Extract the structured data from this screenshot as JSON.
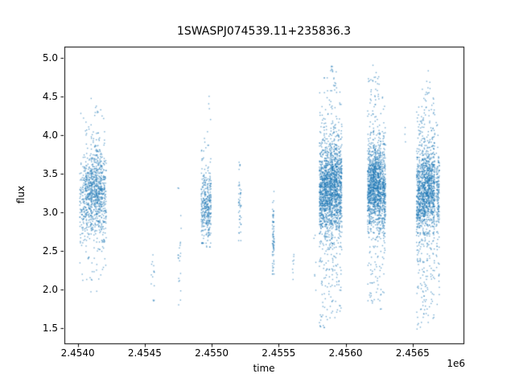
{
  "figure": {
    "background": "#ffffff"
  },
  "chart_data": {
    "type": "scatter",
    "title": "1SWASPJ074539.11+235836.3",
    "xlabel": "time",
    "ylabel": "flux",
    "x_offset_text": "1e6",
    "marker_color": "#1f77b4",
    "axis_color": "#000000",
    "grid": false,
    "legend": null,
    "xlim": [
      2453900,
      2456880
    ],
    "ylim": [
      1.3,
      5.15
    ],
    "xticks": [
      {
        "value": 2454000,
        "label": "2.4540"
      },
      {
        "value": 2454500,
        "label": "2.4545"
      },
      {
        "value": 2455000,
        "label": "2.4550"
      },
      {
        "value": 2455500,
        "label": "2.4555"
      },
      {
        "value": 2456000,
        "label": "2.4560"
      },
      {
        "value": 2456500,
        "label": "2.4565"
      }
    ],
    "yticks": [
      {
        "value": 1.5,
        "label": "1.5"
      },
      {
        "value": 2.0,
        "label": "2.0"
      },
      {
        "value": 2.5,
        "label": "2.5"
      },
      {
        "value": 3.0,
        "label": "3.0"
      },
      {
        "value": 3.5,
        "label": "3.5"
      },
      {
        "value": 4.0,
        "label": "4.0"
      },
      {
        "value": 4.5,
        "label": "4.5"
      },
      {
        "value": 5.0,
        "label": "5.0"
      }
    ],
    "clusters": [
      {
        "x": 2454040,
        "x_spread": 25,
        "n": 150,
        "flux_mean": 3.2,
        "flux_std": 0.3,
        "flux_min": 2.0,
        "flux_max": 4.3,
        "outlier_frac": 0.1
      },
      {
        "x": 2454080,
        "x_spread": 22,
        "n": 210,
        "flux_mean": 3.25,
        "flux_std": 0.27,
        "flux_min": 2.05,
        "flux_max": 4.35,
        "outlier_frac": 0.1
      },
      {
        "x": 2454120,
        "x_spread": 22,
        "n": 260,
        "flux_mean": 3.3,
        "flux_std": 0.26,
        "flux_min": 1.9,
        "flux_max": 4.5,
        "outlier_frac": 0.11
      },
      {
        "x": 2454158,
        "x_spread": 22,
        "n": 270,
        "flux_mean": 3.3,
        "flux_std": 0.28,
        "flux_min": 2.0,
        "flux_max": 4.55,
        "outlier_frac": 0.11
      },
      {
        "x": 2454195,
        "x_spread": 18,
        "n": 150,
        "flux_mean": 3.2,
        "flux_std": 0.33,
        "flux_min": 2.1,
        "flux_max": 4.25,
        "outlier_frac": 0.1
      },
      {
        "x": 2454560,
        "x_spread": 12,
        "n": 14,
        "flux_mean": 2.2,
        "flux_std": 0.18,
        "flux_min": 1.85,
        "flux_max": 2.55,
        "outlier_frac": 0.3
      },
      {
        "x": 2454760,
        "x_spread": 12,
        "n": 22,
        "flux_mean": 2.6,
        "flux_std": 0.35,
        "flux_min": 1.8,
        "flux_max": 3.35,
        "outlier_frac": 0.3
      },
      {
        "x": 2454940,
        "x_spread": 18,
        "n": 170,
        "flux_mean": 3.1,
        "flux_std": 0.22,
        "flux_min": 2.6,
        "flux_max": 4.0,
        "outlier_frac": 0.1
      },
      {
        "x": 2454978,
        "x_spread": 18,
        "n": 190,
        "flux_mean": 3.05,
        "flux_std": 0.24,
        "flux_min": 2.55,
        "flux_max": 4.55,
        "outlier_frac": 0.09
      },
      {
        "x": 2455210,
        "x_spread": 10,
        "n": 45,
        "flux_mean": 3.1,
        "flux_std": 0.28,
        "flux_min": 2.6,
        "flux_max": 3.65,
        "outlier_frac": 0.2
      },
      {
        "x": 2455460,
        "x_spread": 7,
        "n": 75,
        "flux_mean": 2.7,
        "flux_std": 0.24,
        "flux_min": 2.2,
        "flux_max": 3.5,
        "outlier_frac": 0.18
      },
      {
        "x": 2455610,
        "x_spread": 7,
        "n": 8,
        "flux_mean": 2.45,
        "flux_std": 0.12,
        "flux_min": 2.05,
        "flux_max": 2.65,
        "outlier_frac": 0.2
      },
      {
        "x": 2455770,
        "x_spread": 8,
        "n": 6,
        "flux_mean": 2.15,
        "flux_std": 0.25,
        "flux_min": 1.85,
        "flux_max": 2.9,
        "outlier_frac": 0.3
      },
      {
        "x": 2455820,
        "x_spread": 16,
        "n": 360,
        "flux_mean": 3.25,
        "flux_std": 0.3,
        "flux_min": 1.45,
        "flux_max": 4.6,
        "outlier_frac": 0.2
      },
      {
        "x": 2455855,
        "x_spread": 16,
        "n": 430,
        "flux_mean": 3.3,
        "flux_std": 0.28,
        "flux_min": 1.5,
        "flux_max": 4.75,
        "outlier_frac": 0.18
      },
      {
        "x": 2455890,
        "x_spread": 16,
        "n": 450,
        "flux_mean": 3.3,
        "flux_std": 0.3,
        "flux_min": 1.5,
        "flux_max": 4.9,
        "outlier_frac": 0.18
      },
      {
        "x": 2455925,
        "x_spread": 16,
        "n": 420,
        "flux_mean": 3.35,
        "flux_std": 0.28,
        "flux_min": 1.6,
        "flux_max": 4.85,
        "outlier_frac": 0.16
      },
      {
        "x": 2455958,
        "x_spread": 14,
        "n": 300,
        "flux_mean": 3.3,
        "flux_std": 0.3,
        "flux_min": 1.7,
        "flux_max": 4.6,
        "outlier_frac": 0.15
      },
      {
        "x": 2456180,
        "x_spread": 16,
        "n": 390,
        "flux_mean": 3.35,
        "flux_std": 0.27,
        "flux_min": 1.7,
        "flux_max": 4.8,
        "outlier_frac": 0.16
      },
      {
        "x": 2456215,
        "x_spread": 16,
        "n": 450,
        "flux_mean": 3.4,
        "flux_std": 0.25,
        "flux_min": 1.8,
        "flux_max": 4.95,
        "outlier_frac": 0.15
      },
      {
        "x": 2456250,
        "x_spread": 16,
        "n": 420,
        "flux_mean": 3.35,
        "flux_std": 0.28,
        "flux_min": 1.7,
        "flux_max": 4.8,
        "outlier_frac": 0.15
      },
      {
        "x": 2456285,
        "x_spread": 14,
        "n": 280,
        "flux_mean": 3.3,
        "flux_std": 0.3,
        "flux_min": 1.9,
        "flux_max": 4.5,
        "outlier_frac": 0.14
      },
      {
        "x": 2456445,
        "x_spread": 5,
        "n": 3,
        "flux_mean": 4.0,
        "flux_std": 0.08,
        "flux_min": 3.85,
        "flux_max": 4.1,
        "outlier_frac": 0.0
      },
      {
        "x": 2456545,
        "x_spread": 16,
        "n": 330,
        "flux_mean": 3.2,
        "flux_std": 0.3,
        "flux_min": 1.45,
        "flux_max": 4.4,
        "outlier_frac": 0.2
      },
      {
        "x": 2456580,
        "x_spread": 16,
        "n": 390,
        "flux_mean": 3.25,
        "flux_std": 0.3,
        "flux_min": 1.5,
        "flux_max": 4.6,
        "outlier_frac": 0.18
      },
      {
        "x": 2456615,
        "x_spread": 16,
        "n": 390,
        "flux_mean": 3.3,
        "flux_std": 0.28,
        "flux_min": 1.5,
        "flux_max": 4.9,
        "outlier_frac": 0.16
      },
      {
        "x": 2456650,
        "x_spread": 16,
        "n": 330,
        "flux_mean": 3.25,
        "flux_std": 0.3,
        "flux_min": 1.6,
        "flux_max": 4.5,
        "outlier_frac": 0.16
      },
      {
        "x": 2456688,
        "x_spread": 12,
        "n": 160,
        "flux_mean": 3.2,
        "flux_std": 0.3,
        "flux_min": 1.8,
        "flux_max": 4.2,
        "outlier_frac": 0.15
      }
    ]
  }
}
